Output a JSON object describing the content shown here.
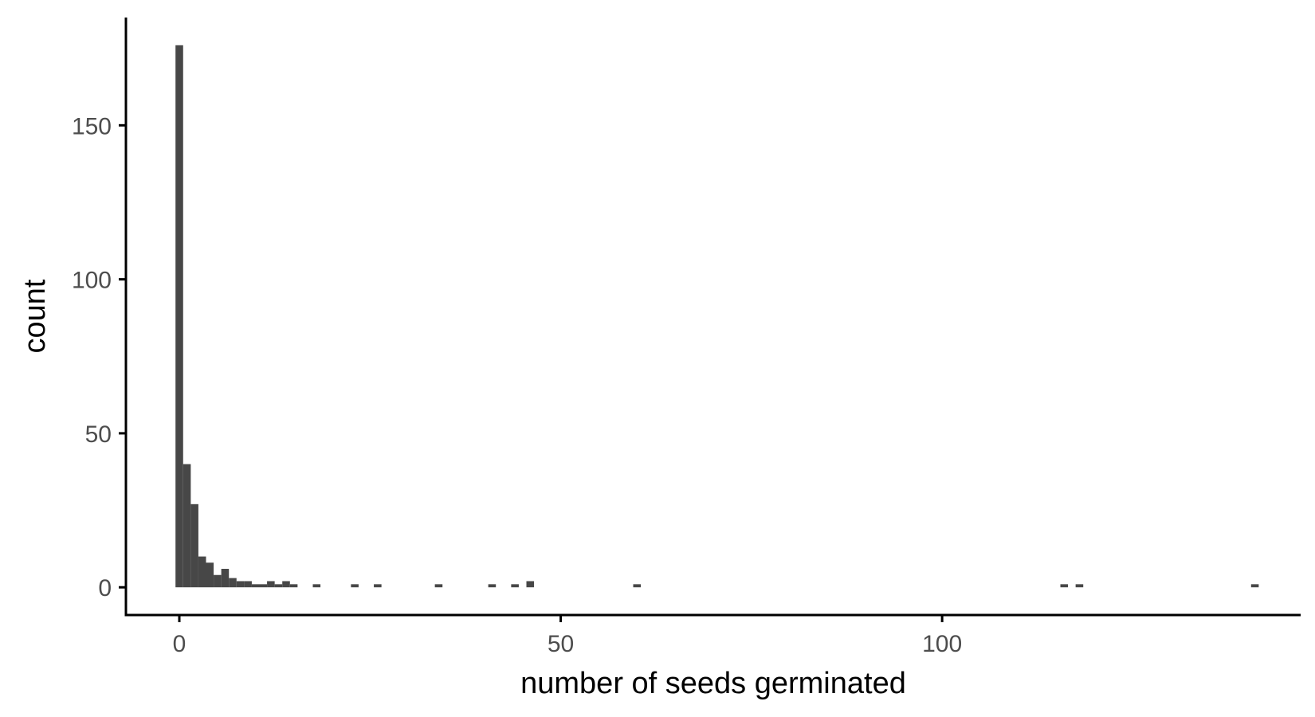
{
  "chart_data": {
    "type": "bar",
    "subtype": "histogram",
    "title": "",
    "xlabel": "number of seeds germinated",
    "ylabel": "count",
    "binwidth": 1,
    "xlim": [
      -7,
      147
    ],
    "ylim": [
      -9,
      185
    ],
    "xticks": [
      0,
      50,
      100
    ],
    "xtick_labels": [
      "0",
      "50",
      "100"
    ],
    "yticks": [
      0,
      50,
      100,
      150
    ],
    "ytick_labels": [
      "0",
      "50",
      "100",
      "150"
    ],
    "grid": false,
    "legend": "none",
    "bar_color": "#474747",
    "axis_color": "#000000",
    "bins": [
      {
        "x": 0,
        "count": 176
      },
      {
        "x": 1,
        "count": 40
      },
      {
        "x": 2,
        "count": 27
      },
      {
        "x": 3,
        "count": 10
      },
      {
        "x": 4,
        "count": 8
      },
      {
        "x": 5,
        "count": 4
      },
      {
        "x": 6,
        "count": 6
      },
      {
        "x": 7,
        "count": 3
      },
      {
        "x": 8,
        "count": 2
      },
      {
        "x": 9,
        "count": 2
      },
      {
        "x": 10,
        "count": 1
      },
      {
        "x": 11,
        "count": 1
      },
      {
        "x": 12,
        "count": 2
      },
      {
        "x": 13,
        "count": 1
      },
      {
        "x": 14,
        "count": 2
      },
      {
        "x": 15,
        "count": 1
      },
      {
        "x": 18,
        "count": 1
      },
      {
        "x": 23,
        "count": 1
      },
      {
        "x": 26,
        "count": 1
      },
      {
        "x": 34,
        "count": 1
      },
      {
        "x": 41,
        "count": 1
      },
      {
        "x": 44,
        "count": 1
      },
      {
        "x": 46,
        "count": 2
      },
      {
        "x": 60,
        "count": 1
      },
      {
        "x": 116,
        "count": 1
      },
      {
        "x": 118,
        "count": 1
      },
      {
        "x": 141,
        "count": 1
      }
    ]
  }
}
